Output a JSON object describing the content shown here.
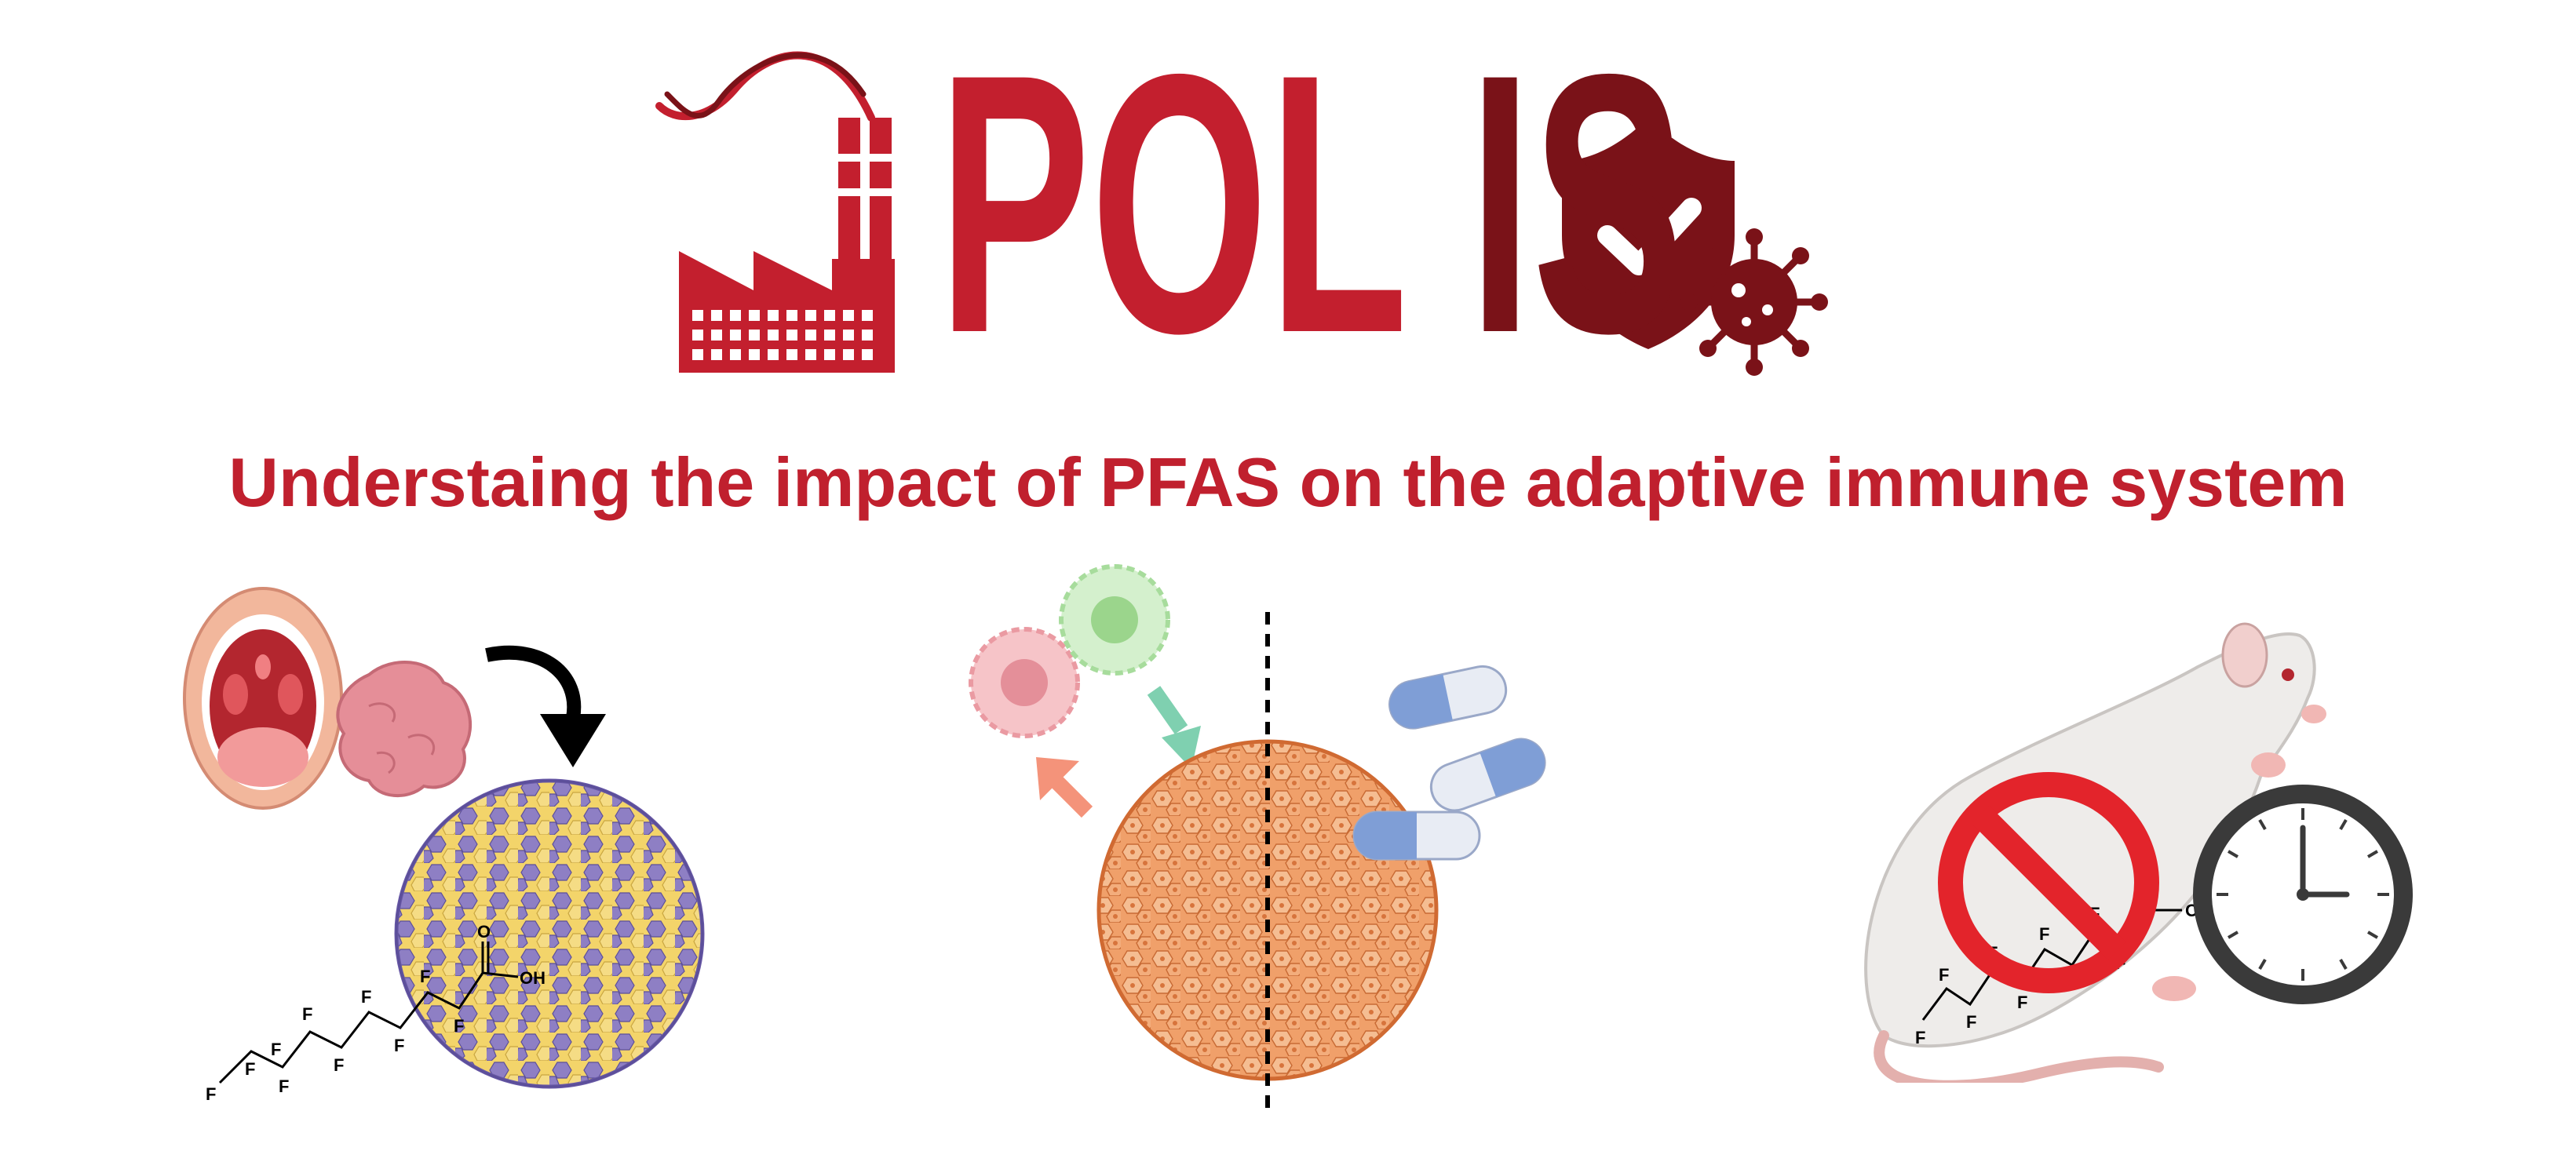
{
  "logo": {
    "text_left": "POL",
    "text_right": "IS",
    "color_left": "#c31f2e",
    "color_right": "#7a1218",
    "icons": [
      "factory-icon",
      "dna-helix-icon",
      "shield-check-icon",
      "virus-icon"
    ]
  },
  "subtitle": "Understaing the impact of PFAS on the adaptive immune system",
  "panels": [
    {
      "name": "tonsil-organoid-exposure",
      "icons": [
        "open-mouth-tonsils-icon",
        "tonsil-tissue-icon",
        "curved-arrow-icon",
        "organoid-sphere-icon",
        "pfas-molecule-icon"
      ],
      "molecule_labels": {
        "atom_f": "F",
        "atom_o": "O",
        "group_oh": "OH"
      }
    },
    {
      "name": "organoid-treatment-comparison",
      "icons": [
        "immune-cell-pink-icon",
        "immune-cell-green-icon",
        "arrow-icon",
        "organoid-sphere-icon",
        "dashed-divider-icon",
        "capsule-icon"
      ]
    },
    {
      "name": "animal-model-replacement",
      "icons": [
        "rat-icon",
        "prohibited-icon",
        "pfas-molecule-icon",
        "clock-icon"
      ],
      "molecule_labels": {
        "atom_f": "F",
        "atom_o": "O",
        "group_oh": "OH"
      }
    }
  ],
  "colors": {
    "brand_red": "#c31f2e",
    "brand_dark_red": "#7a1218",
    "subtitle": "#c0202e",
    "organoid_yellow": "#f3d46a",
    "organoid_purple": "#8e7fc4",
    "organoid_orange": "#f0a06a",
    "capsule_blue": "#7f9ed6",
    "no_sign_red": "#e3242b"
  }
}
